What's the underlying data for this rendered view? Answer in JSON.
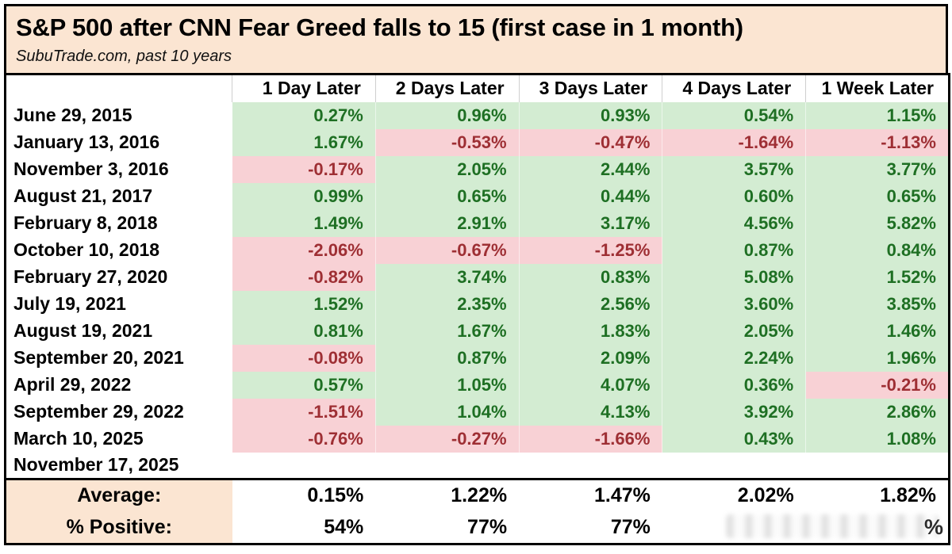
{
  "title": "S&P 500 after CNN Fear Greed falls to 15 (first case in 1 month)",
  "subtitle": "SubuTrade.com, past 10 years",
  "colors": {
    "header_bg": "#fbe5d2",
    "positive_bg": "#d3ecd2",
    "positive_text": "#1e6f23",
    "negative_bg": "#f8d1d5",
    "negative_text": "#9e2f34",
    "border": "#000000"
  },
  "table": {
    "columns": [
      "1 Day Later",
      "2 Days Later",
      "3 Days Later",
      "4 Days Later",
      "1 Week Later"
    ],
    "rows": [
      {
        "date": "June 29, 2015",
        "values": [
          "0.27%",
          "0.96%",
          "0.93%",
          "0.54%",
          "1.15%"
        ],
        "colors": [
          "g",
          "g",
          "g",
          "g",
          "g"
        ]
      },
      {
        "date": "January 13, 2016",
        "values": [
          "1.67%",
          "-0.53%",
          "-0.47%",
          "-1.64%",
          "-1.13%"
        ],
        "colors": [
          "g",
          "r",
          "r",
          "r",
          "r"
        ]
      },
      {
        "date": "November 3, 2016",
        "values": [
          "-0.17%",
          "2.05%",
          "2.44%",
          "3.57%",
          "3.77%"
        ],
        "colors": [
          "r",
          "g",
          "g",
          "g",
          "g"
        ]
      },
      {
        "date": "August 21, 2017",
        "values": [
          "0.99%",
          "0.65%",
          "0.44%",
          "0.60%",
          "0.65%"
        ],
        "colors": [
          "g",
          "g",
          "g",
          "g",
          "g"
        ]
      },
      {
        "date": "February 8, 2018",
        "values": [
          "1.49%",
          "2.91%",
          "3.17%",
          "4.56%",
          "5.82%"
        ],
        "colors": [
          "g",
          "g",
          "g",
          "g",
          "g"
        ]
      },
      {
        "date": "October 10, 2018",
        "values": [
          "-2.06%",
          "-0.67%",
          "-1.25%",
          "0.87%",
          "0.84%"
        ],
        "colors": [
          "r",
          "r",
          "r",
          "g",
          "g"
        ]
      },
      {
        "date": "February 27, 2020",
        "values": [
          "-0.82%",
          "3.74%",
          "0.83%",
          "5.08%",
          "1.52%"
        ],
        "colors": [
          "r",
          "g",
          "g",
          "g",
          "g"
        ]
      },
      {
        "date": "July 19, 2021",
        "values": [
          "1.52%",
          "2.35%",
          "2.56%",
          "3.60%",
          "3.85%"
        ],
        "colors": [
          "g",
          "g",
          "g",
          "g",
          "g"
        ]
      },
      {
        "date": "August 19, 2021",
        "values": [
          "0.81%",
          "1.67%",
          "1.83%",
          "2.05%",
          "1.46%"
        ],
        "colors": [
          "g",
          "g",
          "g",
          "g",
          "g"
        ]
      },
      {
        "date": "September 20, 2021",
        "values": [
          "-0.08%",
          "0.87%",
          "2.09%",
          "2.24%",
          "1.96%"
        ],
        "colors": [
          "r",
          "g",
          "g",
          "g",
          "g"
        ]
      },
      {
        "date": "April 29, 2022",
        "values": [
          "0.57%",
          "1.05%",
          "4.07%",
          "0.36%",
          "-0.21%"
        ],
        "colors": [
          "g",
          "g",
          "g",
          "g",
          "r"
        ]
      },
      {
        "date": "September 29, 2022",
        "values": [
          "-1.51%",
          "1.04%",
          "4.13%",
          "3.92%",
          "2.86%"
        ],
        "colors": [
          "r",
          "g",
          "g",
          "g",
          "g"
        ]
      },
      {
        "date": "March 10, 2025",
        "values": [
          "-0.76%",
          "-0.27%",
          "-1.66%",
          "0.43%",
          "1.08%"
        ],
        "colors": [
          "r",
          "r",
          "r",
          "g",
          "g"
        ]
      },
      {
        "date": "November 17, 2025",
        "values": [
          "",
          "",
          "",
          "",
          ""
        ],
        "colors": [
          "",
          "",
          "",
          "",
          ""
        ]
      }
    ],
    "footer": {
      "average_label": "Average:",
      "average_values": [
        "0.15%",
        "1.22%",
        "1.47%",
        "2.02%",
        "1.82%"
      ],
      "positive_label": "% Positive:",
      "positive_values": [
        "54%",
        "77%",
        "77%",
        "",
        ""
      ],
      "obscured_glyph": "%"
    }
  },
  "chart_data": {
    "type": "table",
    "title": "S&P 500 after CNN Fear Greed falls to 15 (first case in 1 month)",
    "subtitle": "SubuTrade.com, past 10 years",
    "columns": [
      "1 Day Later",
      "2 Days Later",
      "3 Days Later",
      "4 Days Later",
      "1 Week Later"
    ],
    "rows": [
      {
        "date": "June 29, 2015",
        "values_pct": [
          0.27,
          0.96,
          0.93,
          0.54,
          1.15
        ]
      },
      {
        "date": "January 13, 2016",
        "values_pct": [
          1.67,
          -0.53,
          -0.47,
          -1.64,
          -1.13
        ]
      },
      {
        "date": "November 3, 2016",
        "values_pct": [
          -0.17,
          2.05,
          2.44,
          3.57,
          3.77
        ]
      },
      {
        "date": "August 21, 2017",
        "values_pct": [
          0.99,
          0.65,
          0.44,
          0.6,
          0.65
        ]
      },
      {
        "date": "February 8, 2018",
        "values_pct": [
          1.49,
          2.91,
          3.17,
          4.56,
          5.82
        ]
      },
      {
        "date": "October 10, 2018",
        "values_pct": [
          -2.06,
          -0.67,
          -1.25,
          0.87,
          0.84
        ]
      },
      {
        "date": "February 27, 2020",
        "values_pct": [
          -0.82,
          3.74,
          0.83,
          5.08,
          1.52
        ]
      },
      {
        "date": "July 19, 2021",
        "values_pct": [
          1.52,
          2.35,
          2.56,
          3.6,
          3.85
        ]
      },
      {
        "date": "August 19, 2021",
        "values_pct": [
          0.81,
          1.67,
          1.83,
          2.05,
          1.46
        ]
      },
      {
        "date": "September 20, 2021",
        "values_pct": [
          -0.08,
          0.87,
          2.09,
          2.24,
          1.96
        ]
      },
      {
        "date": "April 29, 2022",
        "values_pct": [
          0.57,
          1.05,
          4.07,
          0.36,
          -0.21
        ]
      },
      {
        "date": "September 29, 2022",
        "values_pct": [
          -1.51,
          1.04,
          4.13,
          3.92,
          2.86
        ]
      },
      {
        "date": "March 10, 2025",
        "values_pct": [
          -0.76,
          -0.27,
          -1.66,
          0.43,
          1.08
        ]
      },
      {
        "date": "November 17, 2025",
        "values_pct": [
          null,
          null,
          null,
          null,
          null
        ]
      }
    ],
    "average_pct": [
      0.15,
      1.22,
      1.47,
      2.02,
      1.82
    ],
    "percent_positive": [
      54,
      77,
      77,
      null,
      null
    ],
    "cell_coloring": "green = positive return, red/pink = negative return",
    "legend_position": "none",
    "grid": false
  }
}
